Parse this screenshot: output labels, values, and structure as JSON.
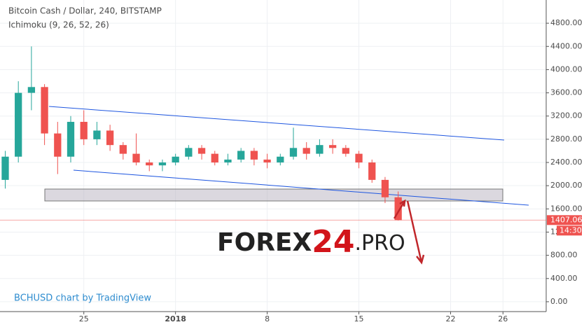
{
  "chart_data": {
    "type": "candlestick",
    "title": "Bitcoin Cash / Dollar, 240, BITSTAMP",
    "subtitle": "Ichimoku (9, 26, 52, 26)",
    "watermark": "BCHUSD chart by TradingView",
    "logo": {
      "part1": "FOREX",
      "part2": "24",
      "part3": ".PRO"
    },
    "x": [
      -13,
      -12,
      -11,
      -10,
      -9,
      -8,
      -7,
      -6,
      -5,
      -4,
      -3,
      -2,
      -1,
      0,
      1,
      2,
      3,
      4,
      5,
      6,
      7,
      8,
      9,
      10,
      11,
      12,
      13,
      14,
      15,
      16,
      17
    ],
    "open": [
      2100,
      2500,
      3600,
      3700,
      2900,
      2500,
      3100,
      2800,
      2950,
      2700,
      2550,
      2400,
      2350,
      2400,
      2500,
      2650,
      2550,
      2400,
      2450,
      2600,
      2450,
      2400,
      2500,
      2650,
      2550,
      2700,
      2650,
      2550,
      2400,
      2100,
      1800
    ],
    "high": [
      2600,
      3800,
      4400,
      3750,
      3100,
      3200,
      3300,
      3100,
      3050,
      2750,
      2900,
      2450,
      2450,
      2550,
      2700,
      2700,
      2600,
      2550,
      2650,
      2650,
      2550,
      2550,
      3000,
      2750,
      2800,
      2800,
      2700,
      2600,
      2450,
      2150,
      1900
    ],
    "low": [
      1950,
      2400,
      3300,
      2700,
      2200,
      2400,
      2700,
      2700,
      2600,
      2450,
      2350,
      2250,
      2250,
      2350,
      2450,
      2450,
      2350,
      2350,
      2400,
      2350,
      2300,
      2350,
      2450,
      2450,
      2500,
      2550,
      2500,
      2300,
      2050,
      1700,
      1400
    ],
    "close": [
      2500,
      3600,
      3700,
      2900,
      2500,
      3100,
      2800,
      2950,
      2700,
      2550,
      2400,
      2350,
      2400,
      2500,
      2650,
      2550,
      2400,
      2450,
      2600,
      2450,
      2400,
      2500,
      2650,
      2550,
      2700,
      2650,
      2550,
      2400,
      2100,
      1800,
      1407
    ],
    "up_color": "#26a69a",
    "down_color": "#ef5350",
    "last_price": 1407.06,
    "countdown": "14:30",
    "xlim": [
      -13.4,
      28.3
    ],
    "xticks": [
      {
        "value": -7,
        "label": "25"
      },
      {
        "value": 0,
        "label": "2018"
      },
      {
        "value": 7,
        "label": "8"
      },
      {
        "value": 14,
        "label": "15"
      },
      {
        "value": 21,
        "label": "22"
      },
      {
        "value": 25,
        "label": "26"
      }
    ],
    "ylim": [
      -170,
      5200
    ],
    "yticks": [
      {
        "value": 0,
        "label": "0.00"
      },
      {
        "value": 400,
        "label": "400.00"
      },
      {
        "value": 800,
        "label": "800.00"
      },
      {
        "value": 1200,
        "label": "1200.00"
      },
      {
        "value": 1600,
        "label": "1600.00"
      },
      {
        "value": 2000,
        "label": "2000.00"
      },
      {
        "value": 2400,
        "label": "2400.00"
      },
      {
        "value": 2800,
        "label": "2800.00"
      },
      {
        "value": 3200,
        "label": "3200.00"
      },
      {
        "value": 3600,
        "label": "3600.00"
      },
      {
        "value": 4000,
        "label": "4000.00"
      },
      {
        "value": 4400,
        "label": "4400.00"
      },
      {
        "value": 4800,
        "label": "4800.00"
      }
    ],
    "grid": true
  }
}
